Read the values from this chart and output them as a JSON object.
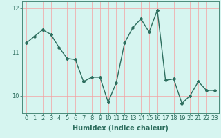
{
  "x": [
    0,
    1,
    2,
    3,
    4,
    5,
    6,
    7,
    8,
    9,
    10,
    11,
    12,
    13,
    14,
    15,
    16,
    17,
    18,
    19,
    20,
    21,
    22,
    23
  ],
  "y": [
    11.2,
    11.35,
    11.5,
    11.4,
    11.1,
    10.85,
    10.82,
    10.32,
    10.42,
    10.42,
    9.85,
    10.3,
    11.2,
    11.55,
    11.75,
    11.45,
    11.95,
    10.35,
    10.38,
    9.82,
    10.0,
    10.32,
    10.12,
    10.12
  ],
  "line_color": "#2d6e5e",
  "marker": "D",
  "marker_size": 2.0,
  "background_color": "#d6f5f0",
  "grid_color": "#f5a0a0",
  "xlabel": "Humidex (Indice chaleur)",
  "ylabel": "",
  "xlim": [
    -0.5,
    23.5
  ],
  "ylim": [
    9.6,
    12.15
  ],
  "yticks": [
    10,
    11,
    12
  ],
  "ytick_labels": [
    "10",
    "11",
    "12"
  ],
  "xticks": [
    0,
    1,
    2,
    3,
    4,
    5,
    6,
    7,
    8,
    9,
    10,
    11,
    12,
    13,
    14,
    15,
    16,
    17,
    18,
    19,
    20,
    21,
    22,
    23
  ],
  "xlabel_fontsize": 7,
  "tick_fontsize": 6,
  "line_width": 1.0,
  "spine_color": "#4a8a7a"
}
